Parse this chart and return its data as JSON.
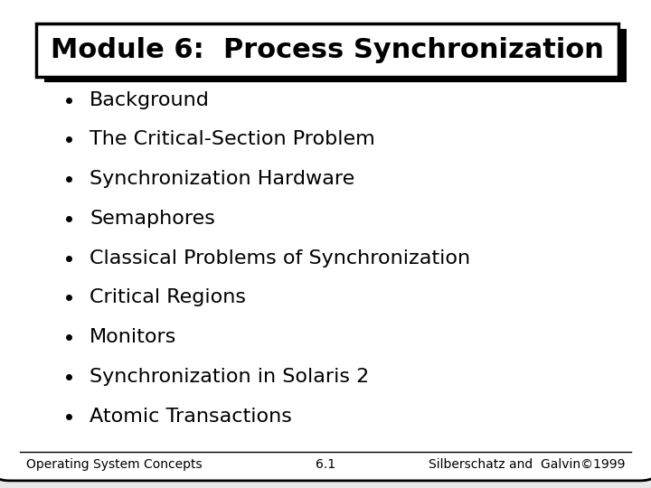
{
  "title": "Module 6:  Process Synchronization",
  "bullet_items": [
    "Background",
    "The Critical-Section Problem",
    "Synchronization Hardware",
    "Semaphores",
    "Classical Problems of Synchronization",
    "Critical Regions",
    "Monitors",
    "Synchronization in Solaris 2",
    "Atomic Transactions"
  ],
  "footer_left": "Operating System Concepts",
  "footer_center": "6.1",
  "footer_right": "Silberschatz and  Galvin©1999",
  "slide_bg": "#e8e8e8",
  "title_fontsize": 22,
  "bullet_fontsize": 16,
  "footer_fontsize": 10
}
